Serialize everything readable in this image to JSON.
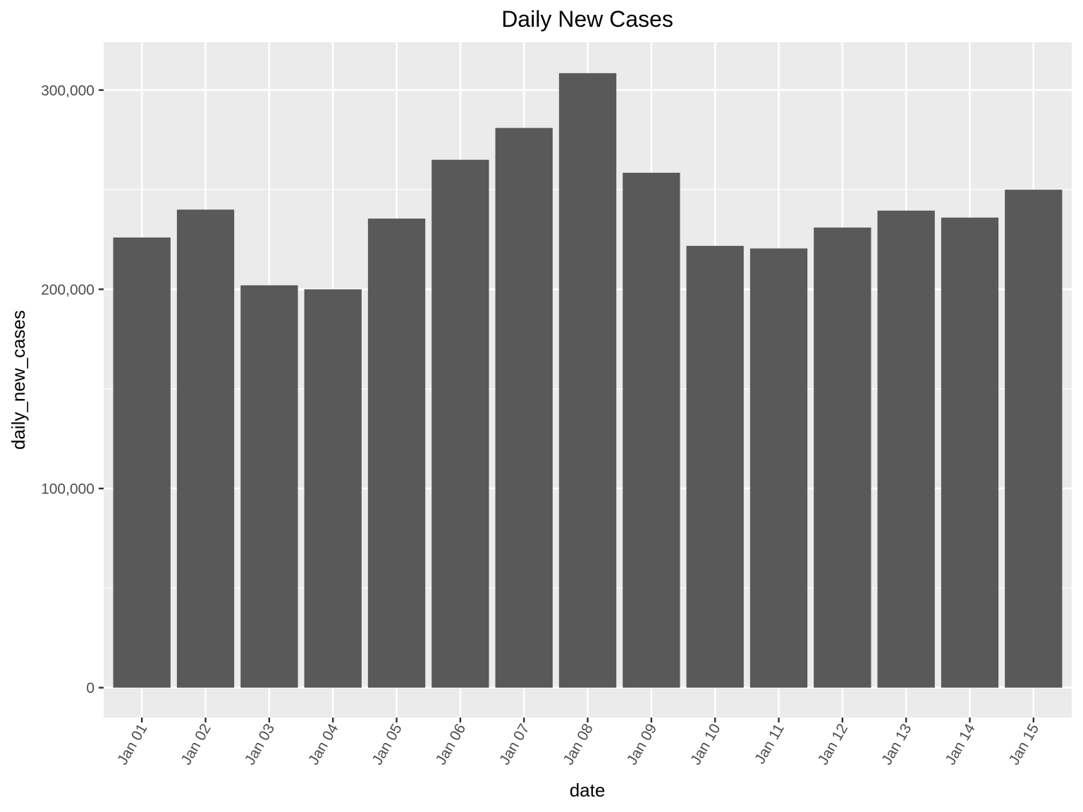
{
  "chart_data": {
    "type": "bar",
    "title": "Daily New Cases",
    "xlabel": "date",
    "ylabel": "daily_new_cases",
    "categories": [
      "Jan 01",
      "Jan 02",
      "Jan 03",
      "Jan 04",
      "Jan 05",
      "Jan 06",
      "Jan 07",
      "Jan 08",
      "Jan 09",
      "Jan 10",
      "Jan 11",
      "Jan 12",
      "Jan 13",
      "Jan 14",
      "Jan 15"
    ],
    "values": [
      226000,
      240000,
      202000,
      200000,
      235500,
      265000,
      281000,
      308500,
      258500,
      221800,
      220500,
      231000,
      239500,
      236000,
      250000
    ],
    "ylim": [
      -15000,
      324000
    ],
    "yticks": [
      0,
      100000,
      200000,
      300000
    ],
    "ytick_labels": [
      "0",
      "100,000",
      "200,000",
      "300,000"
    ],
    "grid": true,
    "bar_color": "#595959",
    "panel_background": "#ebebeb",
    "grid_color": "#ffffff"
  }
}
